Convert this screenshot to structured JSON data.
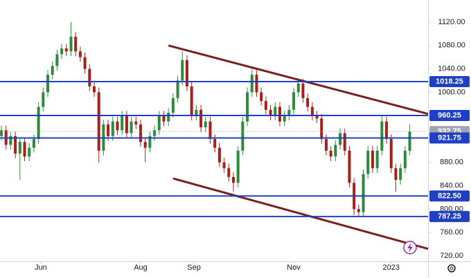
{
  "chart_data": {
    "type": "candlestick",
    "x": [
      0,
      2,
      4,
      6,
      8,
      10,
      12,
      14,
      16,
      18,
      20,
      22,
      24,
      26,
      28,
      30,
      32,
      34,
      36,
      38,
      40,
      42,
      44,
      46,
      48,
      50,
      52,
      54,
      56,
      58,
      60,
      62,
      64,
      66,
      68,
      70,
      72,
      74,
      76,
      78,
      80,
      82,
      84,
      86,
      88,
      90,
      92,
      94,
      96,
      98,
      100,
      102,
      104,
      106,
      108,
      110,
      112,
      114,
      116,
      118,
      120,
      122,
      124,
      126,
      128,
      130,
      132,
      134,
      136,
      138,
      140,
      142,
      144,
      146,
      148,
      150,
      152,
      154,
      156,
      158,
      160,
      162,
      164,
      166,
      168,
      170,
      172,
      174,
      176
    ],
    "open": [
      925,
      935,
      910,
      925,
      895,
      915,
      890,
      905,
      920,
      975,
      1000,
      1030,
      1045,
      1065,
      1075,
      1070,
      1095,
      1070,
      1060,
      1040,
      1010,
      1000,
      900,
      945,
      925,
      950,
      935,
      960,
      930,
      950,
      945,
      915,
      905,
      925,
      935,
      960,
      950,
      965,
      990,
      1020,
      1055,
      1010,
      960,
      970,
      940,
      950,
      920,
      905,
      880,
      870,
      855,
      845,
      900,
      950,
      1000,
      1030,
      1000,
      985,
      970,
      960,
      975,
      950,
      960,
      970,
      1000,
      1015,
      990,
      975,
      960,
      955,
      920,
      900,
      890,
      910,
      930,
      900,
      845,
      800,
      795,
      860,
      900,
      870,
      900,
      950,
      920,
      870,
      850,
      870,
      900
    ],
    "high": [
      943,
      943,
      933,
      933,
      923,
      923,
      913,
      928,
      983,
      1008,
      1038,
      1053,
      1073,
      1083,
      1083,
      1120,
      1103,
      1078,
      1068,
      1048,
      1018,
      1008,
      953,
      953,
      958,
      958,
      968,
      968,
      958,
      958,
      953,
      923,
      933,
      943,
      968,
      968,
      973,
      998,
      1028,
      1070,
      1063,
      1018,
      978,
      978,
      958,
      958,
      928,
      913,
      888,
      878,
      863,
      908,
      958,
      1008,
      1040,
      1038,
      1008,
      993,
      978,
      983,
      983,
      968,
      978,
      1008,
      1023,
      1023,
      998,
      983,
      968,
      963,
      928,
      908,
      918,
      938,
      938,
      908,
      853,
      808,
      868,
      908,
      908,
      908,
      960,
      958,
      928,
      878,
      878,
      908,
      945
    ],
    "low": [
      917,
      902,
      902,
      887,
      850,
      882,
      882,
      897,
      912,
      967,
      992,
      1022,
      1037,
      1057,
      1062,
      1062,
      1062,
      1052,
      1032,
      1002,
      992,
      880,
      892,
      917,
      917,
      927,
      927,
      922,
      922,
      937,
      907,
      880,
      897,
      917,
      927,
      942,
      942,
      957,
      982,
      1012,
      1002,
      952,
      952,
      932,
      932,
      912,
      897,
      872,
      862,
      847,
      830,
      837,
      892,
      942,
      992,
      992,
      977,
      962,
      952,
      952,
      942,
      942,
      952,
      962,
      992,
      982,
      967,
      952,
      947,
      912,
      892,
      882,
      882,
      902,
      892,
      837,
      790,
      787,
      787,
      852,
      862,
      862,
      892,
      912,
      862,
      830,
      842,
      862,
      892
    ],
    "close": [
      935,
      910,
      925,
      895,
      915,
      890,
      905,
      920,
      975,
      1000,
      1030,
      1045,
      1065,
      1075,
      1070,
      1095,
      1070,
      1060,
      1040,
      1010,
      1000,
      900,
      945,
      925,
      950,
      935,
      960,
      930,
      950,
      945,
      915,
      905,
      925,
      935,
      960,
      950,
      965,
      990,
      1020,
      1055,
      1010,
      960,
      970,
      940,
      950,
      920,
      905,
      880,
      870,
      855,
      845,
      900,
      950,
      1000,
      1030,
      1000,
      985,
      970,
      960,
      975,
      950,
      960,
      970,
      1000,
      1015,
      990,
      975,
      960,
      955,
      920,
      900,
      890,
      910,
      930,
      900,
      845,
      800,
      795,
      860,
      900,
      870,
      900,
      950,
      920,
      870,
      850,
      870,
      900,
      932.75
    ],
    "up_color": "#2e8b3e",
    "down_color": "#a8201a",
    "xlim": [
      -0.6,
      183.9
    ],
    "xticks": [
      {
        "value": 17,
        "label": "Jun"
      },
      {
        "value": 60,
        "label": "Aug"
      },
      {
        "value": 83,
        "label": "Sep"
      },
      {
        "value": 126,
        "label": "Nov"
      },
      {
        "value": 168,
        "label": "2023"
      }
    ],
    "ylim": [
      710.5,
      1157.9
    ],
    "yticks": [
      {
        "value": 720,
        "label": "720.00"
      },
      {
        "value": 760,
        "label": "760.00"
      },
      {
        "value": 800,
        "label": "800.00"
      },
      {
        "value": 840,
        "label": "840.00"
      },
      {
        "value": 880,
        "label": "880.00"
      },
      {
        "value": 1000,
        "label": "1000.00"
      },
      {
        "value": 1040,
        "label": "1040.00"
      },
      {
        "value": 1080,
        "label": "1080.00"
      },
      {
        "value": 1120,
        "label": "1120.00"
      }
    ],
    "levels": [
      {
        "value": 1018.25,
        "label": "1018.25"
      },
      {
        "value": 960.25,
        "label": "960.25"
      },
      {
        "value": 921.75,
        "label": "921.75"
      },
      {
        "value": 822.5,
        "label": "822.50"
      },
      {
        "value": 787.25,
        "label": "787.25"
      }
    ],
    "level_color": "#1f3fc4",
    "last_price": {
      "value": 932.75,
      "label": "932.75"
    },
    "last_price_color": "#a3a6ad",
    "trend_lines": [
      {
        "x": [
          72,
          183.9
        ],
        "y": [
          1080,
          963
        ]
      },
      {
        "x": [
          74,
          183.9
        ],
        "y": [
          852.5,
          732
        ]
      }
    ],
    "trend_color": "#7b1e1e"
  }
}
